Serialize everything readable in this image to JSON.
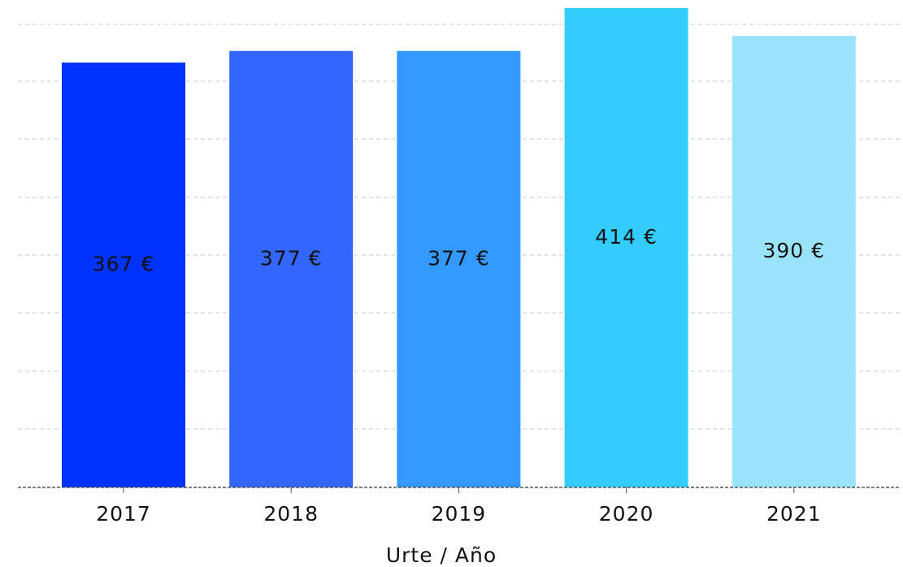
{
  "chart_data": {
    "type": "bar",
    "title": "",
    "xlabel": "Urte / Año",
    "ylabel": "",
    "categories": [
      "2017",
      "2018",
      "2019",
      "2020",
      "2021"
    ],
    "values": [
      367,
      377,
      377,
      414,
      390
    ],
    "data_labels": [
      "367 €",
      "377 €",
      "377 €",
      "414 €",
      "390 €"
    ],
    "colors": [
      "#0033ff",
      "#3366ff",
      "#3399ff",
      "#33ccff",
      "#99e3fb"
    ],
    "ylim": [
      0,
      414
    ],
    "grid": true,
    "legend": "none"
  }
}
